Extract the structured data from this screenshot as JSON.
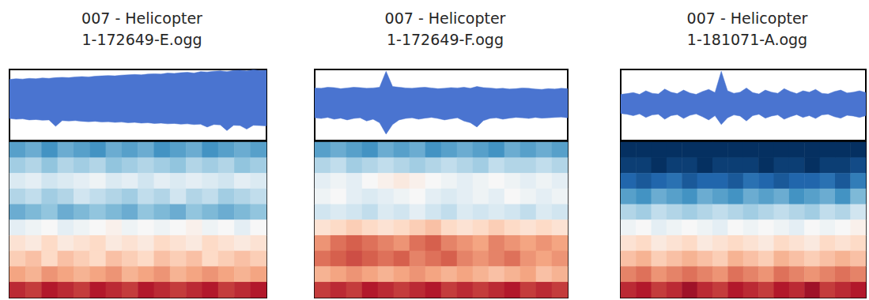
{
  "chart_data": [
    {
      "type": "waveform_spectrogram",
      "title": "007 - Helicopter",
      "subtitle": "1-172649-E.ogg",
      "color": "#4a74d0",
      "tick_labels": false,
      "grid": false,
      "waveform": {
        "ylim": [
          -1,
          1
        ],
        "upper": [
          0.72,
          0.74,
          0.73,
          0.75,
          0.74,
          0.76,
          0.75,
          0.77,
          0.78,
          0.77,
          0.79,
          0.8,
          0.79,
          0.81,
          0.82,
          0.83,
          0.82,
          0.84,
          0.85,
          0.86,
          0.85,
          0.87,
          0.88,
          0.87,
          0.9,
          0.89,
          0.91,
          0.92,
          0.9,
          0.94,
          0.93,
          0.95,
          0.96,
          0.94,
          0.97,
          0.98,
          0.96,
          0.99,
          0.97,
          0.98
        ],
        "lower": [
          -0.38,
          -0.4,
          -0.39,
          -0.42,
          -0.41,
          -0.43,
          -0.42,
          -0.6,
          -0.44,
          -0.45,
          -0.44,
          -0.46,
          -0.47,
          -0.46,
          -0.48,
          -0.47,
          -0.49,
          -0.48,
          -0.5,
          -0.49,
          -0.51,
          -0.5,
          -0.52,
          -0.51,
          -0.53,
          -0.52,
          -0.54,
          -0.53,
          -0.55,
          -0.54,
          -0.62,
          -0.55,
          -0.56,
          -0.72,
          -0.57,
          -0.58,
          -0.68,
          -0.57,
          -0.58,
          -0.59
        ]
      },
      "spectrogram": {
        "color_range": [
          -1,
          1
        ],
        "cells": [
          [
            -0.55,
            -0.5,
            -0.6,
            -0.5,
            -0.55,
            -0.6,
            -0.5,
            -0.55,
            -0.5,
            -0.6,
            -0.55,
            -0.5,
            -0.6,
            -0.55,
            -0.5,
            -0.55
          ],
          [
            -0.35,
            -0.3,
            -0.4,
            -0.3,
            -0.35,
            -0.3,
            -0.4,
            -0.35,
            -0.3,
            -0.35,
            -0.4,
            -0.3,
            -0.35,
            -0.3,
            -0.4,
            -0.35
          ],
          [
            -0.15,
            -0.1,
            -0.2,
            -0.15,
            -0.1,
            -0.05,
            -0.15,
            -0.1,
            -0.2,
            -0.1,
            -0.15,
            -0.1,
            -0.15,
            -0.2,
            -0.1,
            -0.15
          ],
          [
            -0.3,
            -0.25,
            -0.35,
            -0.3,
            -0.2,
            -0.25,
            -0.3,
            -0.35,
            -0.25,
            -0.3,
            -0.2,
            -0.3,
            -0.25,
            -0.35,
            -0.3,
            -0.25
          ],
          [
            -0.5,
            -0.45,
            -0.4,
            -0.5,
            -0.45,
            -0.4,
            -0.45,
            -0.5,
            -0.4,
            -0.45,
            -0.5,
            -0.4,
            -0.45,
            -0.5,
            -0.45,
            -0.4
          ],
          [
            -0.1,
            -0.05,
            0,
            -0.1,
            -0.05,
            0,
            0.05,
            -0.05,
            0,
            -0.05,
            0,
            0.05,
            -0.05,
            0,
            -0.1,
            0
          ],
          [
            0.15,
            0.1,
            0.2,
            0.1,
            0.15,
            0.2,
            0.1,
            0.15,
            0.1,
            0.2,
            0.15,
            0.1,
            0.2,
            0.15,
            0.1,
            0.15
          ],
          [
            0.25,
            0.3,
            0.2,
            0.3,
            0.25,
            0.2,
            0.3,
            0.25,
            0.2,
            0.3,
            0.25,
            0.3,
            0.2,
            0.25,
            0.3,
            0.25
          ],
          [
            0.4,
            0.35,
            0.45,
            0.4,
            0.35,
            0.4,
            0.45,
            0.35,
            0.4,
            0.45,
            0.35,
            0.4,
            0.45,
            0.4,
            0.35,
            0.4
          ],
          [
            0.75,
            0.7,
            0.8,
            0.75,
            0.7,
            0.8,
            0.75,
            0.7,
            0.8,
            0.75,
            0.7,
            0.75,
            0.8,
            0.7,
            0.75,
            0.8
          ]
        ]
      }
    },
    {
      "type": "waveform_spectrogram",
      "title": "007 - Helicopter",
      "subtitle": "1-172649-F.ogg",
      "color": "#4a74d0",
      "tick_labels": false,
      "grid": false,
      "waveform": {
        "ylim": [
          -1,
          1
        ],
        "upper": [
          0.48,
          0.47,
          0.5,
          0.49,
          0.46,
          0.48,
          0.5,
          0.49,
          0.47,
          0.48,
          0.5,
          0.95,
          0.52,
          0.5,
          0.48,
          0.47,
          0.49,
          0.5,
          0.48,
          0.46,
          0.47,
          0.49,
          0.48,
          0.5,
          0.47,
          0.52,
          0.49,
          0.48,
          0.46,
          0.47,
          0.45,
          0.46,
          0.48,
          0.47,
          0.45,
          0.44,
          0.46,
          0.45,
          0.47,
          0.46
        ],
        "lower": [
          -0.36,
          -0.38,
          -0.35,
          -0.4,
          -0.37,
          -0.42,
          -0.38,
          -0.36,
          -0.45,
          -0.4,
          -0.5,
          -0.82,
          -0.55,
          -0.42,
          -0.38,
          -0.36,
          -0.4,
          -0.37,
          -0.35,
          -0.38,
          -0.42,
          -0.39,
          -0.36,
          -0.45,
          -0.5,
          -0.62,
          -0.44,
          -0.38,
          -0.36,
          -0.4,
          -0.37,
          -0.35,
          -0.36,
          -0.38,
          -0.35,
          -0.37,
          -0.36,
          -0.35,
          -0.34,
          -0.36
        ]
      },
      "spectrogram": {
        "color_range": [
          -1,
          1
        ],
        "cells": [
          [
            -0.55,
            -0.5,
            -0.55,
            -0.6,
            -0.5,
            -0.55,
            -0.5,
            -0.6,
            -0.55,
            -0.5,
            -0.55,
            -0.6,
            -0.5,
            -0.55,
            -0.5,
            -0.55
          ],
          [
            -0.3,
            -0.25,
            -0.35,
            -0.3,
            -0.25,
            -0.3,
            -0.35,
            -0.3,
            -0.25,
            -0.3,
            -0.35,
            -0.25,
            -0.3,
            -0.3,
            -0.25,
            -0.3
          ],
          [
            -0.1,
            -0.05,
            -0.1,
            0,
            0.05,
            0.1,
            0.05,
            0,
            -0.05,
            -0.1,
            -0.05,
            0,
            -0.05,
            -0.1,
            -0.05,
            -0.1
          ],
          [
            -0.05,
            0,
            -0.1,
            -0.15,
            -0.1,
            -0.05,
            0,
            -0.1,
            -0.15,
            -0.1,
            -0.05,
            -0.1,
            0,
            -0.05,
            -0.1,
            -0.05
          ],
          [
            -0.2,
            -0.15,
            -0.2,
            -0.25,
            -0.15,
            -0.2,
            -0.1,
            -0.2,
            -0.25,
            -0.15,
            -0.2,
            -0.15,
            -0.2,
            -0.25,
            -0.15,
            -0.2
          ],
          [
            0.15,
            0.2,
            0.25,
            0.2,
            0.15,
            0.2,
            0.25,
            0.3,
            0.2,
            0.15,
            0.2,
            0.25,
            0.2,
            0.15,
            0.2,
            0.15
          ],
          [
            0.45,
            0.55,
            0.6,
            0.55,
            0.5,
            0.45,
            0.55,
            0.6,
            0.5,
            0.45,
            0.4,
            0.5,
            0.45,
            0.4,
            0.45,
            0.4
          ],
          [
            0.55,
            0.6,
            0.65,
            0.6,
            0.55,
            0.6,
            0.5,
            0.55,
            0.6,
            0.5,
            0.45,
            0.5,
            0.55,
            0.45,
            0.4,
            0.45
          ],
          [
            0.35,
            0.4,
            0.45,
            0.4,
            0.35,
            0.4,
            0.45,
            0.4,
            0.35,
            0.4,
            0.35,
            0.3,
            0.35,
            0.4,
            0.3,
            0.35
          ],
          [
            0.7,
            0.75,
            0.7,
            0.8,
            0.75,
            0.7,
            0.75,
            0.8,
            0.7,
            0.75,
            0.7,
            0.75,
            0.8,
            0.7,
            0.75,
            0.7
          ]
        ]
      }
    },
    {
      "type": "waveform_spectrogram",
      "title": "007 - Helicopter",
      "subtitle": "1-181071-A.ogg",
      "color": "#4a74d0",
      "tick_labels": false,
      "grid": false,
      "waveform": {
        "ylim": [
          -1,
          1
        ],
        "upper": [
          0.3,
          0.32,
          0.35,
          0.3,
          0.4,
          0.33,
          0.31,
          0.45,
          0.36,
          0.32,
          0.42,
          0.34,
          0.3,
          0.38,
          0.44,
          0.35,
          0.95,
          0.4,
          0.33,
          0.36,
          0.48,
          0.35,
          0.31,
          0.42,
          0.36,
          0.33,
          0.46,
          0.38,
          0.32,
          0.4,
          0.36,
          0.44,
          0.33,
          0.31,
          0.38,
          0.42,
          0.34,
          0.36,
          0.4,
          0.35
        ],
        "lower": [
          -0.24,
          -0.26,
          -0.3,
          -0.25,
          -0.35,
          -0.28,
          -0.26,
          -0.4,
          -0.3,
          -0.27,
          -0.38,
          -0.29,
          -0.25,
          -0.33,
          -0.42,
          -0.3,
          -0.55,
          -0.36,
          -0.28,
          -0.31,
          -0.45,
          -0.3,
          -0.26,
          -0.37,
          -0.31,
          -0.28,
          -0.4,
          -0.33,
          -0.27,
          -0.35,
          -0.3,
          -0.38,
          -0.28,
          -0.26,
          -0.33,
          -0.37,
          -0.29,
          -0.31,
          -0.35,
          -0.3
        ]
      },
      "spectrogram": {
        "color_range": [
          -1,
          1
        ],
        "cells": [
          [
            -1,
            -1,
            -1,
            -1,
            -1,
            -1,
            -1,
            -1,
            -1,
            -1,
            -1,
            -1,
            -1,
            -1,
            -1,
            -1
          ],
          [
            -0.95,
            -0.95,
            -1,
            -0.95,
            -0.95,
            -1,
            -0.95,
            -0.95,
            -0.95,
            -1,
            -0.95,
            -0.95,
            -1,
            -0.95,
            -0.95,
            -0.9
          ],
          [
            -0.8,
            -0.85,
            -0.8,
            -0.75,
            -0.85,
            -0.8,
            -0.8,
            -0.85,
            -0.75,
            -0.8,
            -0.85,
            -0.8,
            -0.8,
            -0.75,
            -0.85,
            -0.7
          ],
          [
            -0.55,
            -0.6,
            -0.5,
            -0.55,
            -0.6,
            -0.5,
            -0.55,
            -0.6,
            -0.5,
            -0.55,
            -0.5,
            -0.6,
            -0.55,
            -0.5,
            -0.6,
            -0.45
          ],
          [
            -0.3,
            -0.35,
            -0.25,
            -0.3,
            -0.35,
            -0.3,
            -0.25,
            -0.3,
            -0.35,
            -0.3,
            -0.25,
            -0.3,
            -0.35,
            -0.25,
            -0.3,
            -0.2
          ],
          [
            -0.05,
            0,
            -0.1,
            -0.05,
            0,
            -0.05,
            -0.1,
            0,
            -0.05,
            0,
            -0.05,
            -0.1,
            0,
            -0.05,
            0,
            0.05
          ],
          [
            0.15,
            0.2,
            0.1,
            0.15,
            0.2,
            0.1,
            0.15,
            0.2,
            0.15,
            0.1,
            0.2,
            0.15,
            0.1,
            0.2,
            0.15,
            0.2
          ],
          [
            0.3,
            0.35,
            0.25,
            0.3,
            0.35,
            0.3,
            0.25,
            0.35,
            0.3,
            0.25,
            0.35,
            0.3,
            0.25,
            0.3,
            0.35,
            0.3
          ],
          [
            0.5,
            0.55,
            0.45,
            0.5,
            0.55,
            0.5,
            0.45,
            0.55,
            0.5,
            0.45,
            0.55,
            0.5,
            0.45,
            0.5,
            0.55,
            0.5
          ],
          [
            0.75,
            0.8,
            0.7,
            0.75,
            0.85,
            0.75,
            0.7,
            0.8,
            0.75,
            0.7,
            0.8,
            0.75,
            0.85,
            0.7,
            0.75,
            0.8
          ]
        ]
      }
    }
  ]
}
